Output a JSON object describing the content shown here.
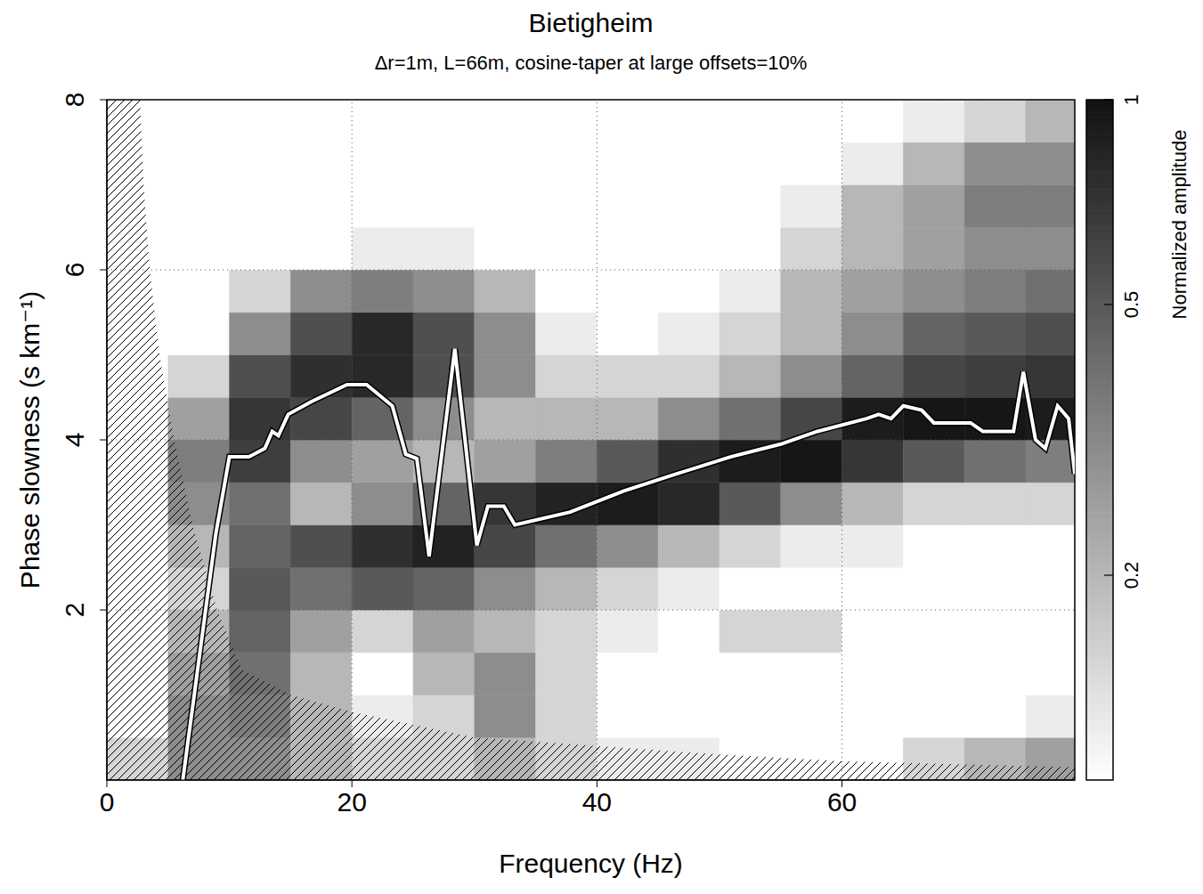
{
  "chart_data": {
    "type": "heatmap",
    "title": "Bietigheim",
    "subtitle": "Δr=1m, L=66m, cosine-taper at large offsets=10%",
    "x_label": "Frequency (Hz)",
    "y_label": "Phase slowness (s km⁻¹)",
    "xlim": [
      0,
      79
    ],
    "xticks": [
      0,
      20,
      40,
      60
    ],
    "ylim": [
      0,
      8
    ],
    "yticks": [
      2,
      4,
      6,
      8
    ],
    "grid": true,
    "x_edges": [
      0,
      5,
      10,
      15,
      20,
      25,
      30,
      35,
      40,
      45,
      50,
      55,
      60,
      65,
      70,
      75,
      79
    ],
    "y_edges": [
      0,
      0.5,
      1,
      1.5,
      2,
      2.5,
      3,
      3.5,
      4,
      4.5,
      5,
      5.5,
      6,
      6.5,
      7,
      7.5,
      8
    ],
    "cells": [
      [
        0.15,
        0.3,
        0.3,
        0.2,
        0.15,
        0.15,
        0.2,
        0.15,
        0.12,
        0.12,
        0.1,
        0.1,
        0.1,
        0.15,
        0.2,
        0.25
      ],
      [
        0.1,
        0.3,
        0.35,
        0.2,
        0.12,
        0.15,
        0.3,
        0.15,
        0.1,
        0.1,
        0.1,
        0.1,
        0.1,
        0.1,
        0.1,
        0.12
      ],
      [
        0.1,
        0.25,
        0.4,
        0.2,
        0.1,
        0.2,
        0.3,
        0.15,
        0.1,
        0.1,
        0.1,
        0.1,
        0.1,
        0.1,
        0.1,
        0.1
      ],
      [
        0.1,
        0.2,
        0.45,
        0.25,
        0.15,
        0.25,
        0.2,
        0.15,
        0.12,
        0.1,
        0.15,
        0.15,
        0.1,
        0.1,
        0.1,
        0.1
      ],
      [
        0.1,
        0.15,
        0.5,
        0.4,
        0.5,
        0.45,
        0.3,
        0.2,
        0.15,
        0.12,
        0.1,
        0.1,
        0.1,
        0.1,
        0.1,
        0.1
      ],
      [
        0.1,
        0.2,
        0.45,
        0.55,
        0.75,
        0.85,
        0.6,
        0.4,
        0.3,
        0.2,
        0.15,
        0.12,
        0.12,
        0.1,
        0.1,
        0.1
      ],
      [
        0.1,
        0.3,
        0.4,
        0.2,
        0.3,
        0.45,
        0.7,
        0.85,
        0.9,
        0.8,
        0.5,
        0.3,
        0.2,
        0.15,
        0.15,
        0.15
      ],
      [
        0.1,
        0.35,
        0.65,
        0.3,
        0.25,
        0.2,
        0.25,
        0.35,
        0.5,
        0.75,
        0.9,
        0.95,
        0.7,
        0.5,
        0.4,
        0.35
      ],
      [
        0.1,
        0.25,
        0.7,
        0.6,
        0.45,
        0.3,
        0.2,
        0.2,
        0.2,
        0.3,
        0.4,
        0.6,
        0.9,
        0.95,
        0.95,
        0.9
      ],
      [
        0.1,
        0.15,
        0.55,
        0.75,
        0.8,
        0.55,
        0.3,
        0.15,
        0.15,
        0.15,
        0.2,
        0.3,
        0.45,
        0.6,
        0.65,
        0.7
      ],
      [
        0.1,
        0.1,
        0.3,
        0.55,
        0.8,
        0.55,
        0.3,
        0.12,
        0.1,
        0.12,
        0.15,
        0.2,
        0.3,
        0.45,
        0.5,
        0.55
      ],
      [
        0.1,
        0.1,
        0.15,
        0.3,
        0.35,
        0.3,
        0.2,
        0.1,
        0.1,
        0.1,
        0.12,
        0.2,
        0.25,
        0.3,
        0.35,
        0.4
      ],
      [
        0.1,
        0.1,
        0.1,
        0.1,
        0.12,
        0.12,
        0.1,
        0.1,
        0.1,
        0.1,
        0.1,
        0.15,
        0.2,
        0.25,
        0.3,
        0.3
      ],
      [
        0.1,
        0.1,
        0.1,
        0.1,
        0.1,
        0.1,
        0.1,
        0.1,
        0.1,
        0.1,
        0.1,
        0.12,
        0.2,
        0.25,
        0.35,
        0.35
      ],
      [
        0.1,
        0.1,
        0.1,
        0.1,
        0.1,
        0.1,
        0.1,
        0.1,
        0.1,
        0.1,
        0.1,
        0.1,
        0.12,
        0.2,
        0.3,
        0.3
      ],
      [
        0.1,
        0.1,
        0.1,
        0.1,
        0.1,
        0.1,
        0.1,
        0.1,
        0.1,
        0.1,
        0.1,
        0.1,
        0.1,
        0.12,
        0.15,
        0.2
      ]
    ],
    "colorbar": {
      "label": "Normalized amplitude",
      "range": [
        0.1,
        1
      ],
      "ticks": [
        0.2,
        0.5,
        1
      ],
      "log": true
    },
    "series": [
      {
        "type": "line",
        "color": "#ffffff",
        "x": [
          6.2,
          8.9,
          10.0,
          11.6,
          12.9,
          13.5,
          14.0,
          14.8,
          16.7,
          19.6,
          21.2,
          23.3,
          24.4,
          25.3,
          26.3,
          28.4,
          30.2,
          31.1,
          32.4,
          33.3,
          37.8,
          42.2,
          46.5,
          50.9,
          55,
          58,
          62,
          63,
          64,
          65,
          66.5,
          67.5,
          70.5,
          71.5,
          74,
          74.8,
          75.8,
          76.6,
          77.6,
          78.5,
          79
        ],
        "values": [
          0,
          2.9,
          3.8,
          3.8,
          3.9,
          4.1,
          4.05,
          4.3,
          4.45,
          4.65,
          4.65,
          4.4,
          3.83,
          3.78,
          2.63,
          5.07,
          2.76,
          3.22,
          3.22,
          3.0,
          3.15,
          3.4,
          3.6,
          3.8,
          3.95,
          4.1,
          4.25,
          4.3,
          4.25,
          4.4,
          4.35,
          4.2,
          4.2,
          4.1,
          4.1,
          4.8,
          4.0,
          3.9,
          4.4,
          4.25,
          3.6
        ]
      }
    ],
    "shaded_region": {
      "x": [
        0,
        2.7,
        3,
        3.5,
        4.3,
        5.5,
        7,
        9,
        11,
        15,
        20,
        30,
        40,
        50,
        60,
        79
      ],
      "y": [
        8,
        8,
        7,
        6,
        5,
        4,
        3,
        2,
        1.3,
        1.0,
        0.8,
        0.5,
        0.4,
        0.3,
        0.22,
        0.15
      ]
    }
  }
}
